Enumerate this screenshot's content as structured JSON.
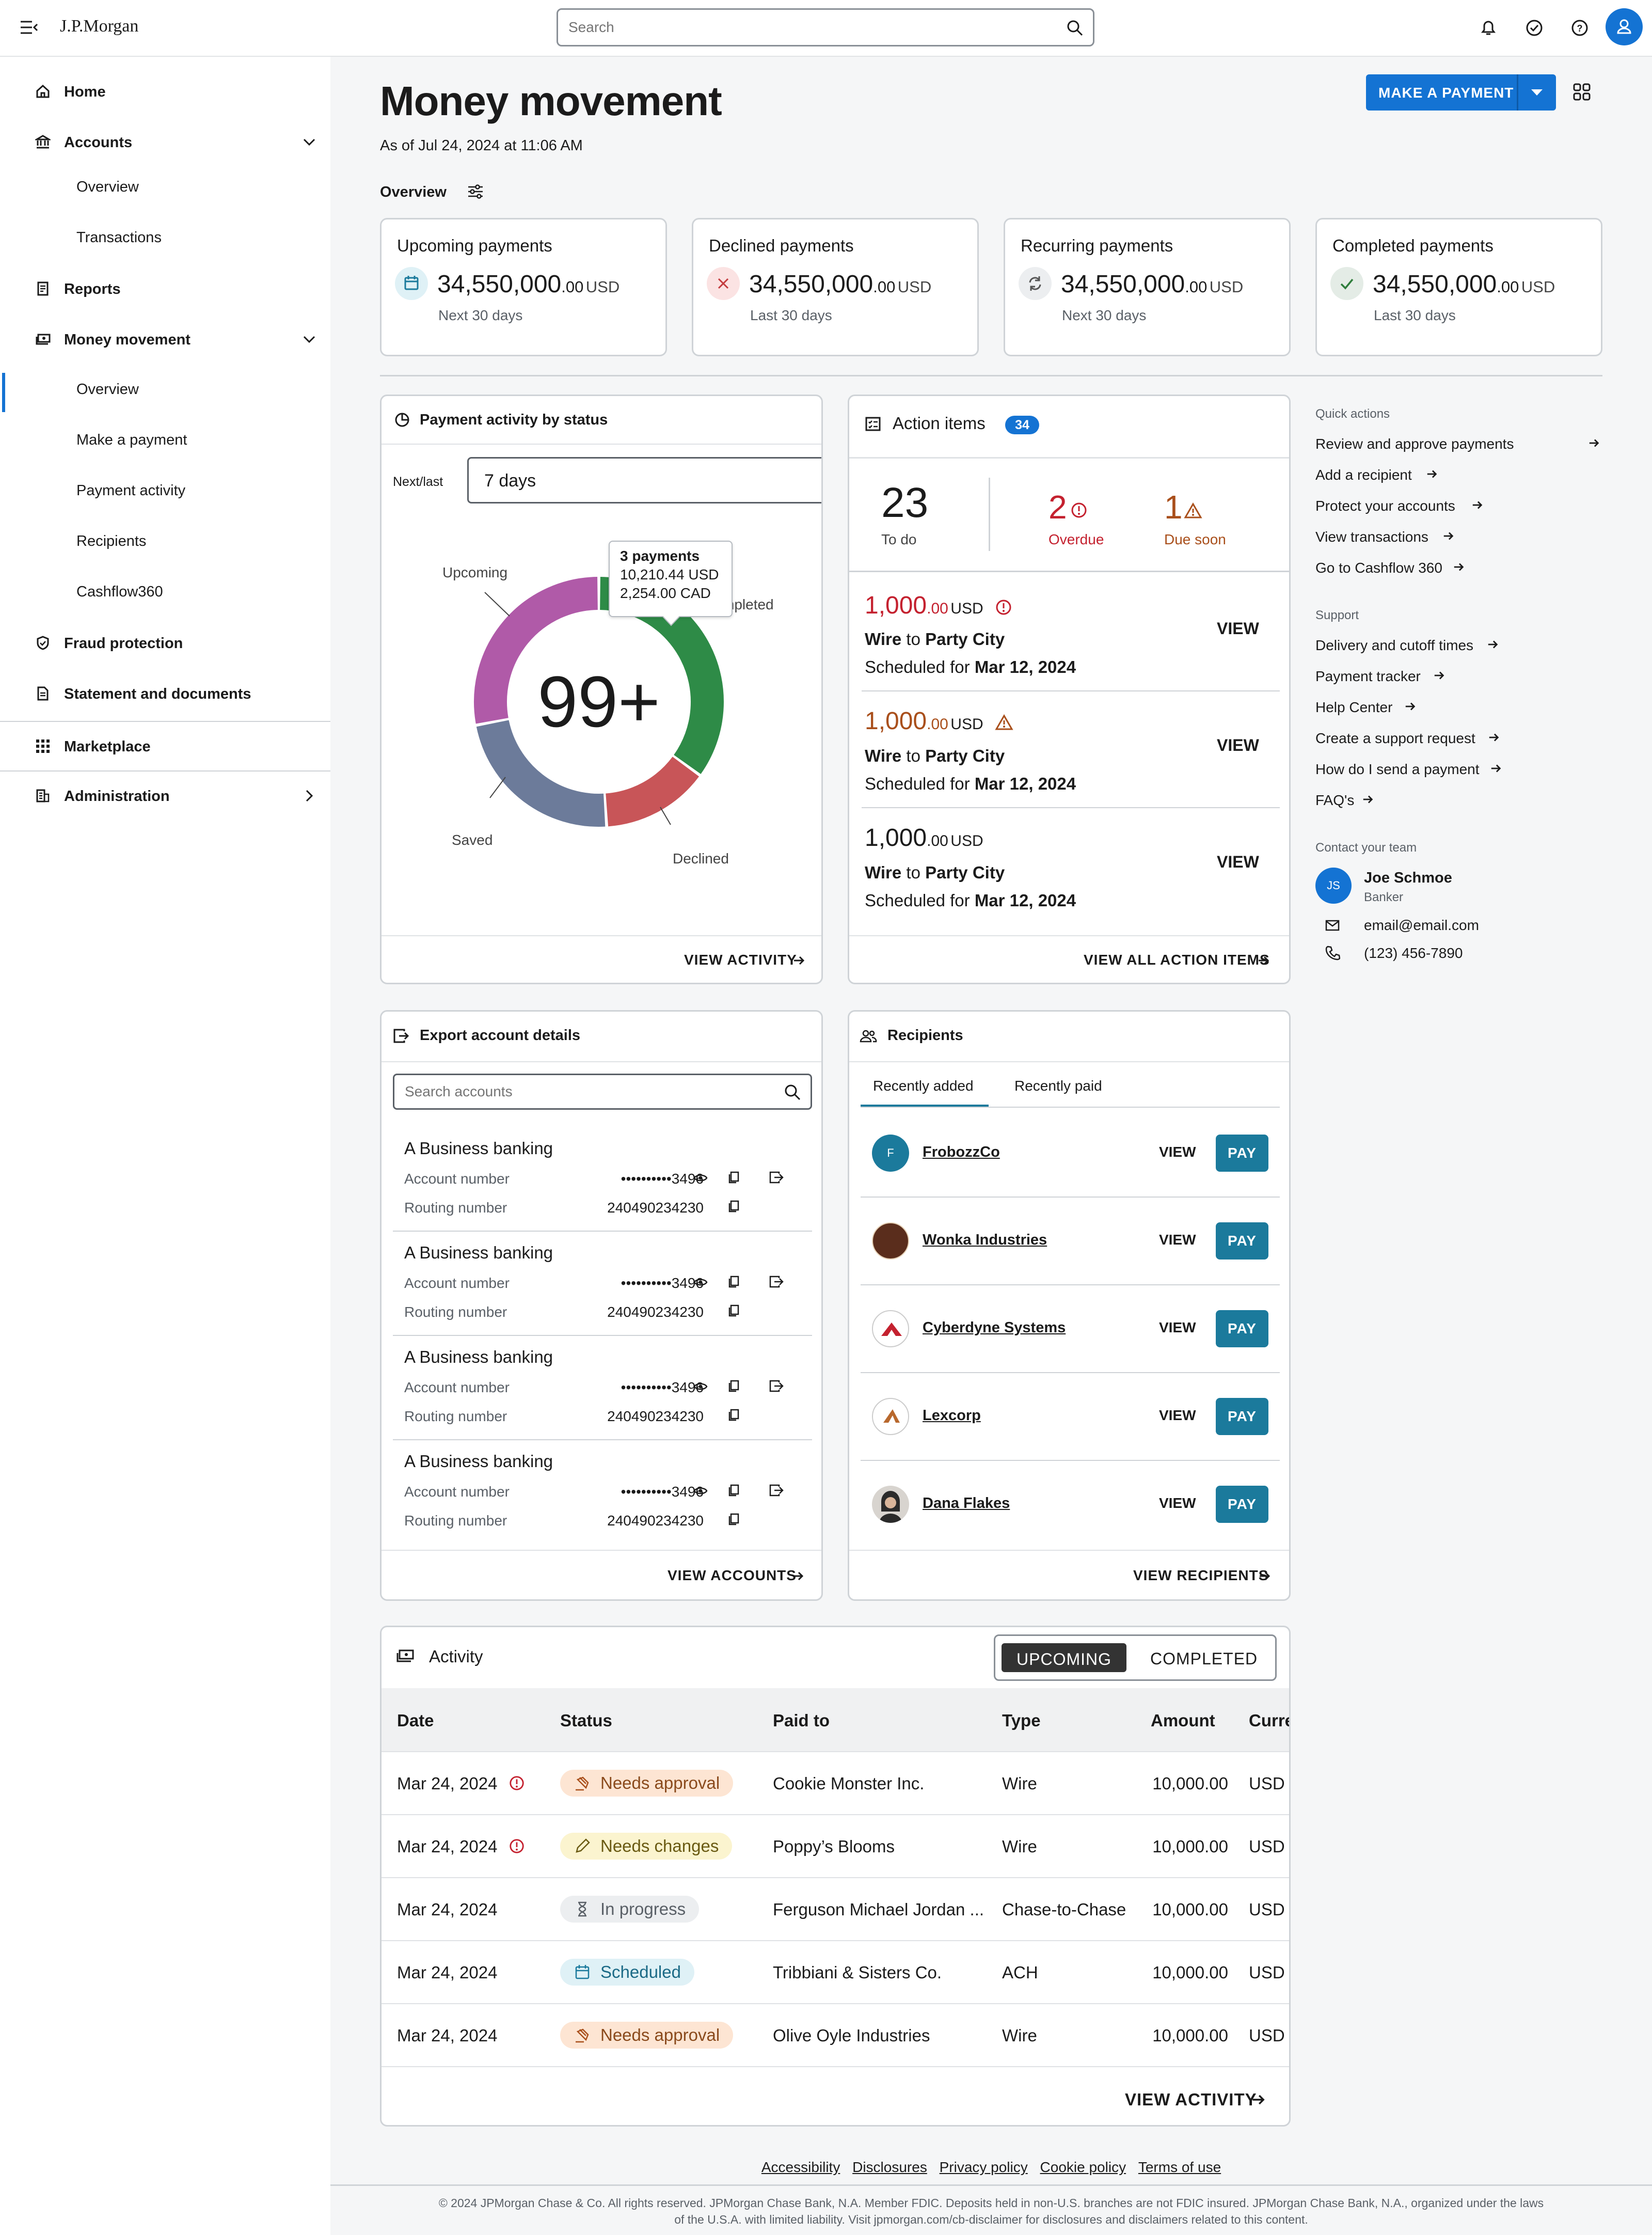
{
  "header": {
    "logo": "J.P.Morgan",
    "search_placeholder": "Search"
  },
  "sidebar": {
    "items": [
      {
        "label": "Home"
      },
      {
        "label": "Accounts"
      },
      {
        "label": "Overview"
      },
      {
        "label": "Transactions"
      },
      {
        "label": "Reports"
      },
      {
        "label": "Money movement"
      },
      {
        "label": "Overview"
      },
      {
        "label": "Make a payment"
      },
      {
        "label": "Payment activity"
      },
      {
        "label": "Recipients"
      },
      {
        "label": "Cashflow360"
      },
      {
        "label": "Fraud protection"
      },
      {
        "label": "Statement and documents"
      },
      {
        "label": "Marketplace"
      },
      {
        "label": "Administration"
      }
    ]
  },
  "page": {
    "title": "Money movement",
    "as_of": "As of Jul 24, 2024 at 11:06 AM",
    "make_payment": "MAKE A PAYMENT",
    "overview_label": "Overview"
  },
  "summary": [
    {
      "title": "Upcoming payments",
      "amount": "34,550,000",
      "cents": ".00",
      "currency": "USD",
      "period": "Next 30 days"
    },
    {
      "title": "Declined payments",
      "amount": "34,550,000",
      "cents": ".00",
      "currency": "USD",
      "period": "Last 30 days"
    },
    {
      "title": "Recurring payments",
      "amount": "34,550,000",
      "cents": ".00",
      "currency": "USD",
      "period": "Next 30 days"
    },
    {
      "title": "Completed payments",
      "amount": "34,550,000",
      "cents": ".00",
      "currency": "USD",
      "period": "Last 30 days"
    }
  ],
  "status_chart": {
    "title": "Payment activity by status",
    "next_last_label": "Next/last",
    "period": "7 days",
    "center_value": "99+",
    "tooltip": {
      "line1": "3 payments",
      "line2": "10,210.44 USD",
      "line3": "2,254.00 CAD"
    },
    "labels": {
      "upcoming": "Upcoming",
      "completed": "mpleted",
      "declined": "Declined",
      "saved": "Saved"
    },
    "view_link": "VIEW ACTIVITY"
  },
  "chart_data": {
    "type": "pie",
    "categories": [
      "Completed",
      "Declined",
      "Saved",
      "Upcoming"
    ],
    "values": [
      35,
      14,
      23,
      28
    ],
    "colors": [
      "#2e8b47",
      "#c85558",
      "#6c7b9a",
      "#b05aa8"
    ]
  },
  "action_items": {
    "title": "Action items",
    "count": "34",
    "todo_count": "23",
    "todo_label": "To do",
    "overdue_count": "2",
    "overdue_label": "Overdue",
    "due_count": "1",
    "due_label": "Due soon",
    "view_all": "VIEW ALL ACTION ITEMS",
    "items": [
      {
        "amount": "1,000",
        "cents": ".00",
        "currency": "USD",
        "wire": "Wire",
        "to": "to",
        "party": "Party City",
        "sched": "Scheduled for",
        "date": "Mar 12, 2024",
        "view": "VIEW"
      },
      {
        "amount": "1,000",
        "cents": ".00",
        "currency": "USD",
        "wire": "Wire",
        "to": "to",
        "party": "Party City",
        "sched": "Scheduled for",
        "date": "Mar 12, 2024",
        "view": "VIEW"
      },
      {
        "amount": "1,000",
        "cents": ".00",
        "currency": "USD",
        "wire": "Wire",
        "to": "to",
        "party": "Party City",
        "sched": "Scheduled for",
        "date": "Mar 12, 2024",
        "view": "VIEW"
      }
    ]
  },
  "quick": {
    "heading": "Quick actions",
    "items": [
      "Review and approve payments",
      "Add a recipient",
      "Protect your accounts",
      "View transactions",
      "Go to Cashflow 360"
    ],
    "support_heading": "Support",
    "support": [
      "Delivery and cutoff times",
      "Payment tracker",
      "Help Center",
      "Create a support request",
      "How do I send a payment",
      "FAQ's"
    ],
    "contact_heading": "Contact your team",
    "initials": "JS",
    "name": "Joe Schmoe",
    "role": "Banker",
    "email": "email@email.com",
    "phone": "(123) 456-7890"
  },
  "export": {
    "title": "Export account details",
    "search_placeholder": "Search accounts",
    "view_link": "VIEW ACCOUNTS",
    "accounts": [
      {
        "name": "A Business banking",
        "acct_label": "Account number",
        "acct": "••••••••••3496",
        "rout_label": "Routing number",
        "rout": "240490234230"
      },
      {
        "name": "A Business banking",
        "acct_label": "Account number",
        "acct": "••••••••••3496",
        "rout_label": "Routing number",
        "rout": "240490234230"
      },
      {
        "name": "A Business banking",
        "acct_label": "Account number",
        "acct": "••••••••••3496",
        "rout_label": "Routing number",
        "rout": "240490234230"
      },
      {
        "name": "A Business banking",
        "acct_label": "Account number",
        "acct": "••••••••••3496",
        "rout_label": "Routing number",
        "rout": "240490234230"
      }
    ]
  },
  "recipients": {
    "title": "Recipients",
    "tab1": "Recently added",
    "tab2": "Recently paid",
    "view_link": "VIEW RECIPIENTS",
    "view": "VIEW",
    "pay": "PAY",
    "items": [
      {
        "name": "FrobozzCo",
        "initial": "F"
      },
      {
        "name": "Wonka Industries",
        "initial": ""
      },
      {
        "name": "Cyberdyne Systems",
        "initial": ""
      },
      {
        "name": "Lexcorp",
        "initial": ""
      },
      {
        "name": "Dana Flakes",
        "initial": ""
      }
    ]
  },
  "activity": {
    "title": "Activity",
    "toggle_upcoming": "UPCOMING",
    "toggle_completed": "COMPLETED",
    "view_link": "VIEW ACTIVITY",
    "columns": [
      "Date",
      "Status",
      "Paid to",
      "Type",
      "Amount",
      "Curre"
    ],
    "rows": [
      {
        "date": "Mar 24, 2024",
        "status": "Needs approval",
        "paid_to": "Cookie Monster Inc.",
        "type": "Wire",
        "amount": "10,000.00",
        "currency": "USD"
      },
      {
        "date": "Mar 24, 2024",
        "status": "Needs changes",
        "paid_to": "Poppy’s Blooms",
        "type": "Wire",
        "amount": "10,000.00",
        "currency": "USD"
      },
      {
        "date": "Mar 24, 2024",
        "status": "In progress",
        "paid_to": "Ferguson Michael Jordan ...",
        "type": "Chase-to-Chase",
        "amount": "10,000.00",
        "currency": "USD"
      },
      {
        "date": "Mar 24, 2024",
        "status": "Scheduled",
        "paid_to": "Tribbiani & Sisters Co.",
        "type": "ACH",
        "amount": "10,000.00",
        "currency": "USD"
      },
      {
        "date": "Mar 24, 2024",
        "status": "Needs approval",
        "paid_to": "Olive Oyle Industries",
        "type": "Wire",
        "amount": "10,000.00",
        "currency": "USD"
      }
    ]
  },
  "footer": {
    "links": [
      "Accessibility",
      "Disclosures",
      "Privacy policy",
      "Cookie policy",
      "Terms of use"
    ],
    "line1": "© 2024 JPMorgan Chase & Co. All rights reserved. JPMorgan Chase Bank, N.A. Member FDIC. Deposits held in non-U.S. branches are not FDIC insured. JPMorgan Chase Bank, N.A., organized under the laws",
    "line2": "of the U.S.A. with limited liability. Visit jpmorgan.com/cb-disclaimer for disclosures and disclaimers related to this content."
  }
}
